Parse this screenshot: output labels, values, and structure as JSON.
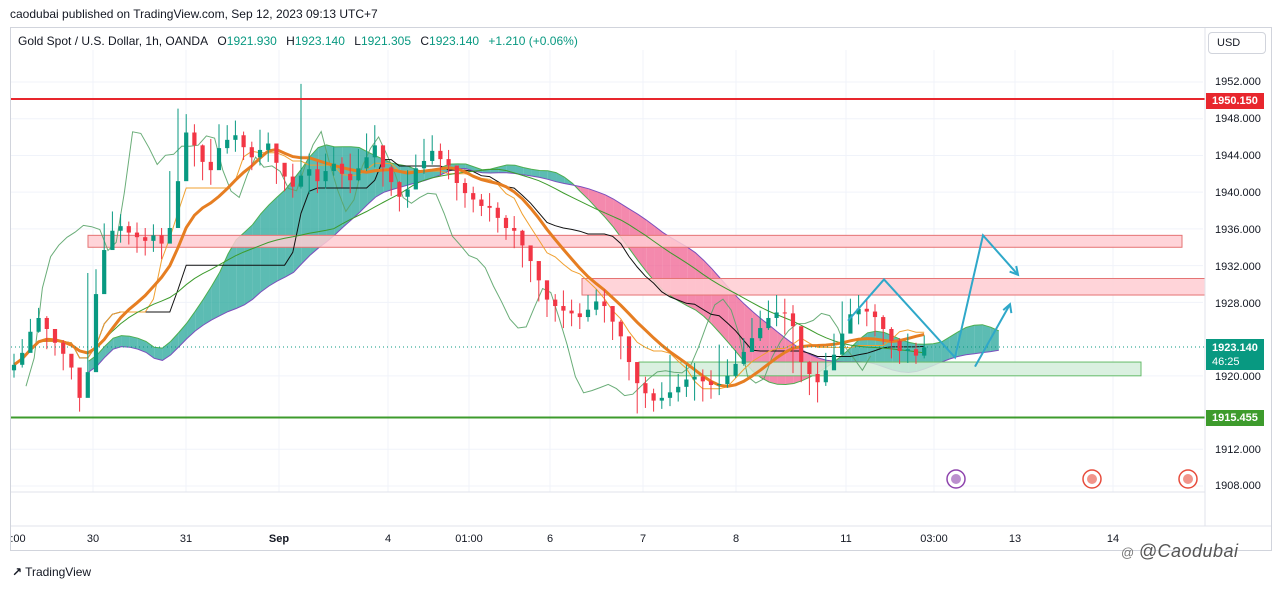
{
  "header": {
    "publisher": "caodubai published on TradingView.com, Sep 12, 2023 09:13 UTC+7",
    "symbol": "Gold Spot / U.S. Dollar, 1h, OANDA",
    "ohlc": {
      "o_label": "O",
      "o": "1921.930",
      "h_label": "H",
      "h": "1923.140",
      "l_label": "L",
      "l": "1921.305",
      "c_label": "C",
      "c": "1923.140",
      "change": "+1.210 (+0.06%)"
    },
    "currency_button": "USD"
  },
  "chart_data": {
    "type": "candlestick",
    "ylim": [
      1906,
      1955
    ],
    "y_ticks": [
      "1952.000",
      "1948.000",
      "1944.000",
      "1940.000",
      "1936.000",
      "1932.000",
      "1928.000",
      "1920.000",
      "1912.000",
      "1908.000"
    ],
    "x_ticks": [
      ":00",
      "30",
      "31",
      "Sep",
      "4",
      "01:00",
      "6",
      "7",
      "8",
      "11",
      "03:00",
      "13",
      "14"
    ],
    "price_labels": {
      "resistance": "1950.150",
      "last_price": "1923.140",
      "countdown": "46:25",
      "support": "1915.455"
    },
    "close": [
      1921.2,
      1922.5,
      1924.8,
      1926.3,
      1925.1,
      1923.6,
      1922.4,
      1920.9,
      1917.6,
      1920.4,
      1928.9,
      1933.7,
      1935.8,
      1936.3,
      1935.6,
      1935.1,
      1934.7,
      1935.3,
      1934.4,
      1936.1,
      1941.2,
      1946.5,
      1945.1,
      1943.3,
      1942.4,
      1944.8,
      1945.7,
      1946.2,
      1944.9,
      1943.8,
      1944.6,
      1945.3,
      1943.2,
      1941.7,
      1940.6,
      1941.8,
      1942.5,
      1941.2,
      1942.3,
      1943.1,
      1942.0,
      1941.3,
      1942.6,
      1943.8,
      1945.1,
      1942.7,
      1941.1,
      1939.5,
      1940.3,
      1942.6,
      1943.4,
      1944.5,
      1943.6,
      1942.9,
      1941.0,
      1939.9,
      1939.2,
      1938.5,
      1938.3,
      1937.2,
      1936.1,
      1935.8,
      1934.2,
      1932.5,
      1930.4,
      1928.3,
      1927.6,
      1927.1,
      1926.8,
      1926.4,
      1927.2,
      1928.1,
      1927.6,
      1925.9,
      1924.3,
      1921.5,
      1919.2,
      1918.1,
      1917.3,
      1917.6,
      1918.2,
      1918.8,
      1919.6,
      1919.9,
      1919.4,
      1919.0,
      1919.1,
      1920.0,
      1921.3,
      1922.6,
      1924.1,
      1925.2,
      1926.3,
      1926.9,
      1926.8,
      1925.4,
      1921.5,
      1920.2,
      1919.3,
      1920.6,
      1922.3,
      1924.6,
      1926.7,
      1927.3,
      1927.0,
      1926.4,
      1925.1,
      1923.8,
      1922.7,
      1922.9,
      1922.2,
      1923.1
    ],
    "high": [
      1922.4,
      1924.0,
      1926.2,
      1927.4,
      1926.5,
      1924.8,
      1923.9,
      1922.2,
      1919.9,
      1931.2,
      1931.6,
      1936.6,
      1937.9,
      1937.6,
      1936.8,
      1936.7,
      1936.1,
      1936.5,
      1936.1,
      1942.3,
      1949.1,
      1948.5,
      1947.4,
      1945.2,
      1945.8,
      1947.4,
      1947.3,
      1947.8,
      1946.6,
      1945.5,
      1946.8,
      1946.5,
      1945.3,
      1943.0,
      1943.1,
      1951.8,
      1944.2,
      1943.3,
      1944.2,
      1944.9,
      1943.8,
      1944.2,
      1944.7,
      1946.4,
      1947.3,
      1944.9,
      1942.9,
      1941.2,
      1942.4,
      1944.1,
      1945.8,
      1946.2,
      1945.3,
      1944.6,
      1942.8,
      1941.5,
      1940.6,
      1939.8,
      1939.9,
      1938.9,
      1937.5,
      1937.4,
      1935.9,
      1934.1,
      1931.6,
      1929.7,
      1928.9,
      1929.3,
      1928.3,
      1927.9,
      1928.8,
      1929.4,
      1929.4,
      1927.6,
      1926.1,
      1923.4,
      1920.4,
      1919.9,
      1918.6,
      1919.3,
      1922.3,
      1920.2,
      1921.2,
      1921.4,
      1920.7,
      1920.6,
      1923.4,
      1921.8,
      1922.8,
      1924.1,
      1926.3,
      1927.1,
      1928.2,
      1928.8,
      1928.4,
      1927.7,
      1923.7,
      1921.6,
      1921.5,
      1922.5,
      1924.6,
      1928.1,
      1928.4,
      1928.8,
      1928.3,
      1927.8,
      1926.6,
      1925.3,
      1924.1,
      1924.6,
      1923.6,
      1924.4
    ],
    "low": [
      1919.8,
      1920.9,
      1922.9,
      1924.7,
      1922.9,
      1922.2,
      1920.6,
      1919.6,
      1916.1,
      1918.2,
      1927.2,
      1932.1,
      1934.8,
      1934.5,
      1934.3,
      1933.4,
      1933.1,
      1933.5,
      1932.7,
      1934.7,
      1939.6,
      1943.7,
      1942.8,
      1941.3,
      1940.8,
      1943.1,
      1944.2,
      1944.4,
      1943.5,
      1942.4,
      1942.9,
      1943.3,
      1940.9,
      1940.1,
      1939.4,
      1940.4,
      1939.8,
      1939.9,
      1940.4,
      1941.8,
      1940.5,
      1939.9,
      1941.2,
      1942.3,
      1942.7,
      1940.6,
      1939.6,
      1937.9,
      1938.3,
      1940.3,
      1942.0,
      1943.0,
      1941.8,
      1941.4,
      1939.1,
      1938.3,
      1937.8,
      1937.4,
      1936.8,
      1935.6,
      1934.8,
      1933.9,
      1931.8,
      1930.2,
      1928.1,
      1926.4,
      1925.9,
      1925.2,
      1925.4,
      1925.1,
      1925.9,
      1926.6,
      1925.8,
      1923.9,
      1921.8,
      1919.5,
      1915.9,
      1916.5,
      1916.1,
      1916.4,
      1916.7,
      1917.2,
      1917.7,
      1917.3,
      1917.2,
      1917.5,
      1917.9,
      1918.7,
      1919.8,
      1921.1,
      1922.6,
      1923.8,
      1925.0,
      1925.4,
      1924.5,
      1920.3,
      1919.3,
      1917.9,
      1917.1,
      1918.9,
      1920.9,
      1922.5,
      1925.3,
      1925.6,
      1925.4,
      1924.3,
      1923.4,
      1921.9,
      1921.3,
      1921.4,
      1921.3,
      1921.9
    ],
    "zones": [
      {
        "low": 1934.0,
        "high": 1935.3
      },
      {
        "low": 1928.8,
        "high": 1930.6
      },
      {
        "low": 1920.0,
        "high": 1921.5
      }
    ],
    "levels": {
      "resistance": 1950.15,
      "support": 1915.455,
      "last": 1923.14
    },
    "forecast_path": [
      [
        1926.0,
        1930.5,
        1922.0,
        1935.3,
        1931.0
      ],
      [
        1921.0,
        1927.8
      ]
    ],
    "colors": {
      "up": "#089981",
      "down": "#f23645",
      "resistance": "#e8262d",
      "support": "#3d9b2c",
      "cloud_up": "#26a69a",
      "cloud_down": "#f06292",
      "ma": "#e67e22",
      "forecast": "#2fa8c9",
      "zone_red": "#ffcdd2",
      "zone_green": "#d4edda"
    }
  },
  "footer": {
    "brand": "TradingView",
    "watermark_icon": "@",
    "watermark": "@Caodubai"
  }
}
